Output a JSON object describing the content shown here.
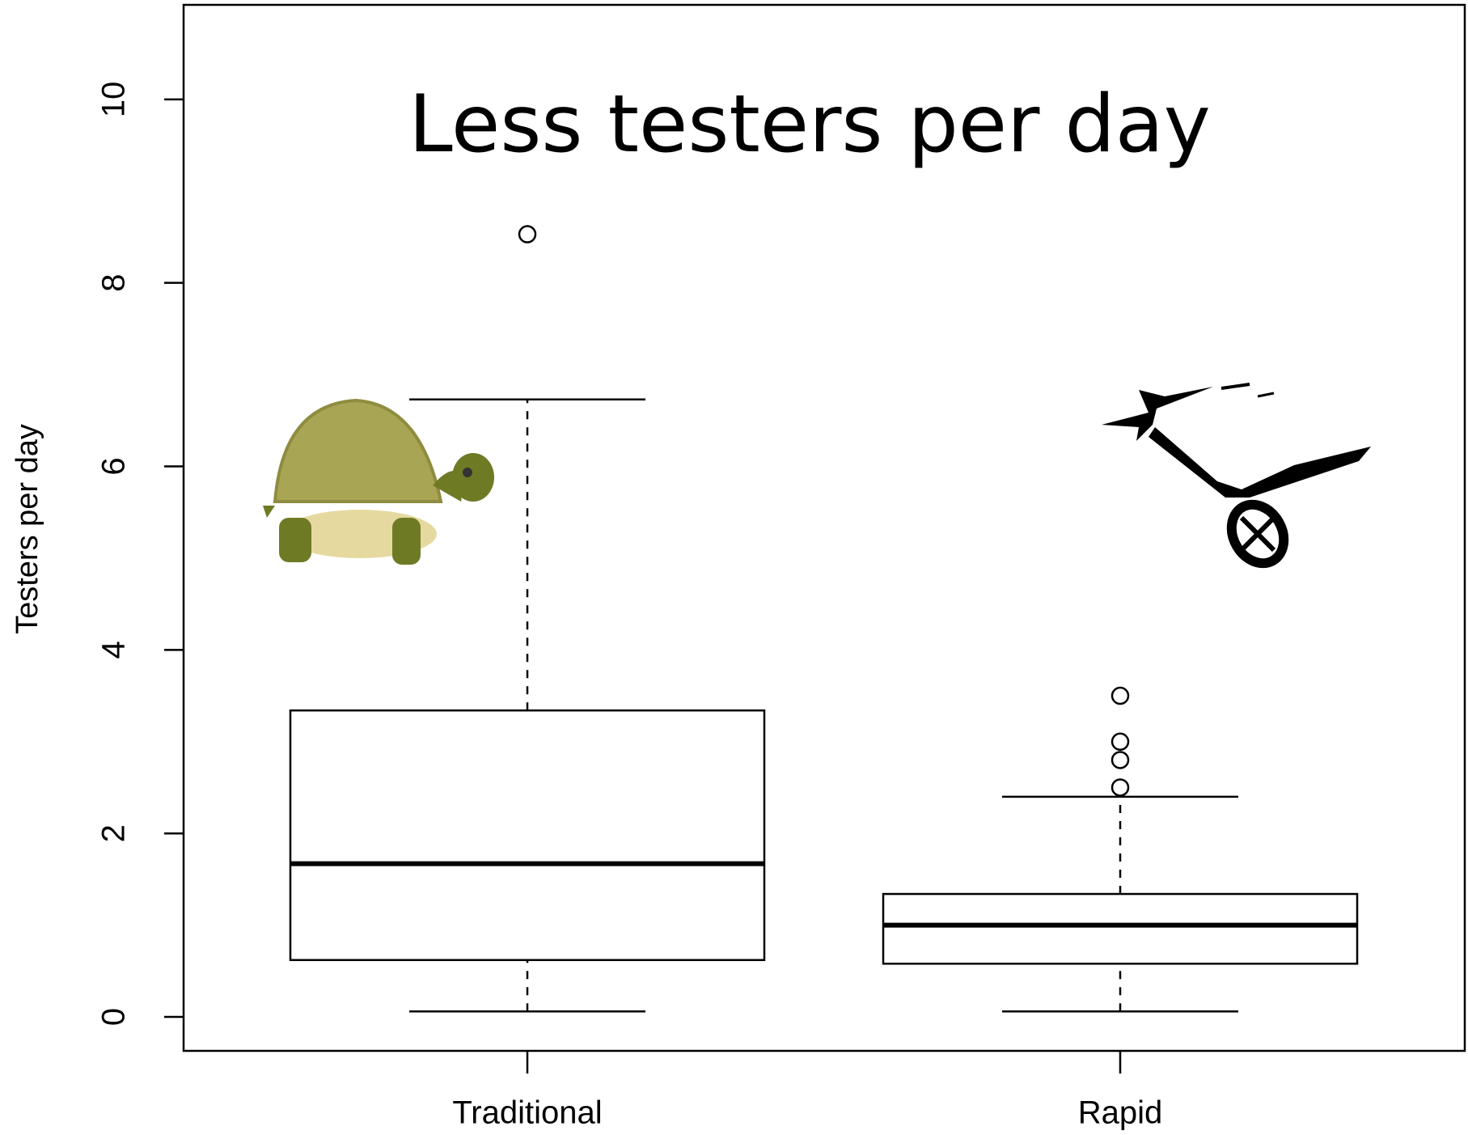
{
  "chart_data": {
    "type": "box",
    "title": "Less testers per day",
    "y_label": "Testers per day",
    "categories": [
      "Traditional",
      "Rapid"
    ],
    "boxes": [
      {
        "whislo": 0.06,
        "q1": 0.62,
        "med": 1.67,
        "q3": 3.34,
        "whishi": 6.73,
        "fliers": [
          8.53
        ]
      },
      {
        "whislo": 0.06,
        "q1": 0.58,
        "med": 1.0,
        "q3": 1.34,
        "whishi": 2.4,
        "fliers": [
          3.5,
          3.0,
          2.8,
          2.5
        ]
      }
    ],
    "color": "#000000",
    "ylim": [
      -0.37,
      11.03
    ],
    "yticks": [
      0,
      2,
      4,
      6,
      8,
      10
    ],
    "grid": false
  }
}
